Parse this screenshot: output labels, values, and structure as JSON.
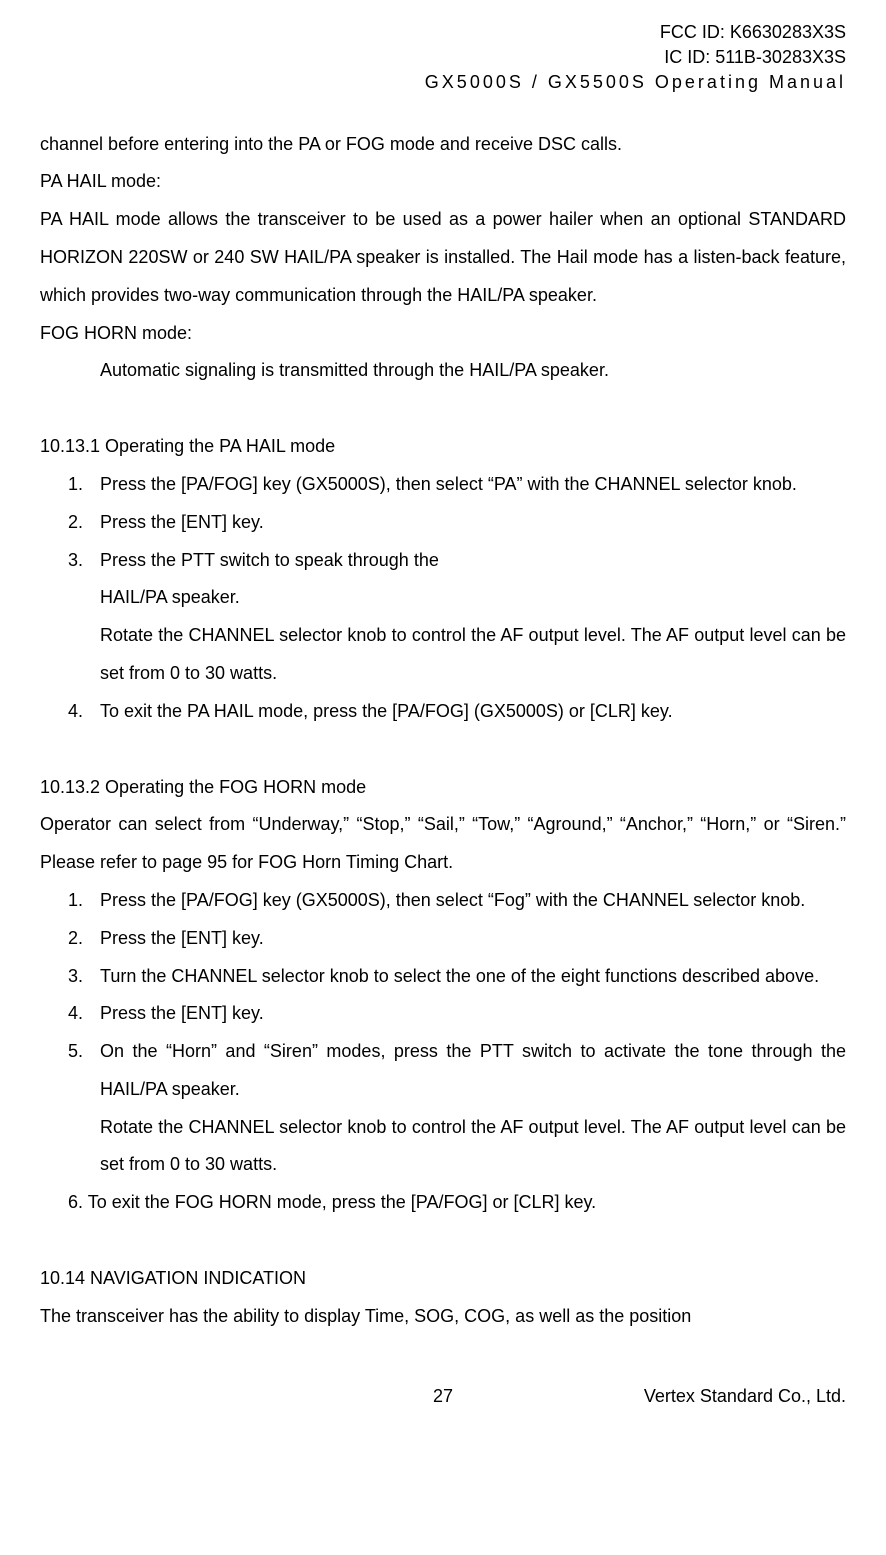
{
  "header": {
    "fcc_id": "FCC ID: K6630283X3S",
    "ic_id": "IC ID: 511B-30283X3S",
    "manual_title": "GX5000S / GX5500S  Operating Manual"
  },
  "content": {
    "intro_line": "channel before entering into the PA or FOG mode and receive DSC calls.",
    "pa_hail_mode_label": "PA HAIL mode:",
    "pa_hail_desc": "PA HAIL mode allows the transceiver to be used as a power hailer when an optional STANDARD HORIZON 220SW or 240 SW HAIL/PA speaker is installed. The Hail mode has a listen-back feature, which provides two-way communication through the HAIL/PA speaker.",
    "fog_horn_mode_label": "FOG HORN mode:",
    "fog_horn_desc": "Automatic signaling is transmitted through the HAIL/PA speaker.",
    "section_10_13_1": "10.13.1 Operating the PA HAIL mode",
    "pa_steps": {
      "n1": "1.",
      "s1": "Press the [PA/FOG] key (GX5000S), then select “PA” with the CHANNEL selector knob.",
      "n2": "2.",
      "s2": "Press the [ENT] key.",
      "n3": "3.",
      "s3": "Press the PTT switch to speak through the",
      "s3b": "HAIL/PA speaker.",
      "s3c": "Rotate the CHANNEL selector knob to control the AF output level. The AF output level can be set from 0 to 30 watts.",
      "n4": "4.",
      "s4": "To exit the PA HAIL mode, press the [PA/FOG] (GX5000S) or [CLR] key."
    },
    "section_10_13_2": "10.13.2 Operating the FOG HORN mode",
    "fog_intro": "Operator can select from “Underway,” “Stop,” “Sail,” “Tow,” “Aground,” “Anchor,” “Horn,” or “Siren.” Please refer to page 95 for FOG Horn Timing Chart.",
    "fog_steps": {
      "n1": "1.",
      "s1": "Press the [PA/FOG] key (GX5000S), then select “Fog” with the CHANNEL selector knob.",
      "n2": "2.",
      "s2": "Press the [ENT] key.",
      "n3": "3.",
      "s3": "Turn the CHANNEL selector knob to select the one of the eight functions described above.",
      "n4": "4.",
      "s4": "Press the [ENT] key.",
      "n5": "5.",
      "s5": "On the “Horn” and “Siren” modes, press the PTT switch to activate the tone through the HAIL/PA speaker.",
      "s5b": "Rotate the CHANNEL selector knob to control the AF output level. The AF output level can be set from 0 to 30 watts.",
      "s6": "6. To exit the FOG HORN mode, press the [PA/FOG] or [CLR] key."
    },
    "section_10_14": "10.14 NAVIGATION INDICATION",
    "nav_desc": "The transceiver has the ability to display Time, SOG, COG, as well as the position"
  },
  "footer": {
    "page_number": "27",
    "company": "Vertex Standard Co., Ltd."
  },
  "colors": {
    "background": "#ffffff",
    "text": "#000000"
  },
  "typography": {
    "font_family": "Arial, Helvetica, sans-serif",
    "body_font_size": 18,
    "line_height": 2.1
  }
}
